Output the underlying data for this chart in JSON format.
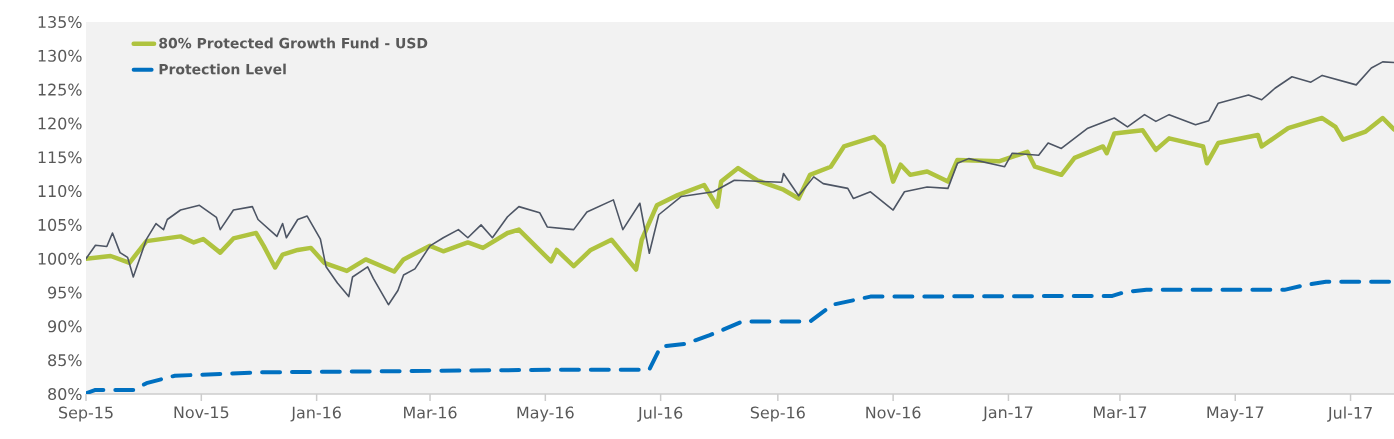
{
  "chart_data": {
    "type": "line",
    "xlim": [
      "2015-09-01",
      "2017-07-24"
    ],
    "xticks": [
      {
        "value": "2015-09-01",
        "label": "Sep-15"
      },
      {
        "value": "2015-11-01",
        "label": "Nov-15"
      },
      {
        "value": "2016-01-01",
        "label": "Jan-16"
      },
      {
        "value": "2016-03-01",
        "label": "Mar-16"
      },
      {
        "value": "2016-05-01",
        "label": "May-16"
      },
      {
        "value": "2016-07-01",
        "label": "Jul-16"
      },
      {
        "value": "2016-09-01",
        "label": "Sep-16"
      },
      {
        "value": "2016-11-01",
        "label": "Nov-16"
      },
      {
        "value": "2017-01-01",
        "label": "Jan-17"
      },
      {
        "value": "2017-03-01",
        "label": "Mar-17"
      },
      {
        "value": "2017-05-01",
        "label": "May-17"
      },
      {
        "value": "2017-07-01",
        "label": "Jul-17"
      }
    ],
    "ylim": [
      80,
      135
    ],
    "yticks": [
      {
        "value": 80,
        "label": "80%"
      },
      {
        "value": 85,
        "label": "85%"
      },
      {
        "value": 90,
        "label": "90%"
      },
      {
        "value": 95,
        "label": "95%"
      },
      {
        "value": 100,
        "label": "100%"
      },
      {
        "value": 105,
        "label": "105%"
      },
      {
        "value": 110,
        "label": "110%"
      },
      {
        "value": 115,
        "label": "115%"
      },
      {
        "value": 120,
        "label": "120%"
      },
      {
        "value": 125,
        "label": "125%"
      },
      {
        "value": 130,
        "label": "130%"
      },
      {
        "value": 135,
        "label": "135%"
      }
    ],
    "grid": false,
    "legend": "top left",
    "series": [
      {
        "name": "80% Protected Growth Fund - USD",
        "color": "#afc33f",
        "line_style": "solid",
        "x": [
          "2015-09-01",
          "2015-09-14",
          "2015-09-24",
          "2015-10-03",
          "2015-10-21",
          "2015-10-28",
          "2015-11-02",
          "2015-11-11",
          "2015-11-18",
          "2015-11-30",
          "2015-12-04",
          "2015-12-10",
          "2015-12-14",
          "2015-12-22",
          "2015-12-29",
          "2016-01-05",
          "2016-01-17",
          "2016-01-27",
          "2016-02-11",
          "2016-02-16",
          "2016-03-01",
          "2016-03-08",
          "2016-03-21",
          "2016-03-29",
          "2016-04-11",
          "2016-04-17",
          "2016-05-04",
          "2016-05-07",
          "2016-05-16",
          "2016-05-25",
          "2016-06-05",
          "2016-06-18",
          "2016-06-21",
          "2016-06-29",
          "2016-07-10",
          "2016-07-24",
          "2016-07-31",
          "2016-08-02",
          "2016-08-11",
          "2016-08-21",
          "2016-09-04",
          "2016-09-12",
          "2016-09-18",
          "2016-09-29",
          "2016-10-06",
          "2016-10-22",
          "2016-10-27",
          "2016-11-01",
          "2016-11-05",
          "2016-11-10",
          "2016-11-19",
          "2016-11-30",
          "2016-12-05",
          "2016-12-27",
          "2017-01-11",
          "2017-01-15",
          "2017-01-29",
          "2017-02-05",
          "2017-02-20",
          "2017-02-22",
          "2017-02-26",
          "2017-03-13",
          "2017-03-20",
          "2017-03-27",
          "2017-04-14",
          "2017-04-16",
          "2017-04-22",
          "2017-05-13",
          "2017-05-15",
          "2017-05-29",
          "2017-06-12",
          "2017-06-16",
          "2017-06-23",
          "2017-06-27",
          "2017-07-09",
          "2017-07-18",
          "2017-07-24"
        ],
        "values": [
          100.0,
          100.4,
          99.4,
          102.6,
          103.3,
          102.4,
          102.9,
          100.9,
          103.0,
          103.8,
          101.9,
          98.7,
          100.6,
          101.3,
          101.6,
          99.4,
          98.2,
          99.9,
          98.1,
          99.9,
          101.9,
          101.1,
          102.4,
          101.6,
          103.8,
          104.3,
          99.6,
          101.3,
          98.9,
          101.3,
          102.8,
          98.4,
          102.8,
          107.9,
          109.4,
          110.9,
          107.7,
          111.4,
          113.4,
          111.6,
          110.2,
          108.9,
          112.4,
          113.6,
          116.6,
          118.0,
          116.6,
          111.4,
          113.9,
          112.4,
          112.9,
          111.4,
          114.6,
          114.4,
          115.8,
          113.6,
          112.4,
          114.9,
          116.6,
          115.6,
          118.5,
          119.0,
          116.1,
          117.8,
          116.6,
          114.1,
          117.1,
          118.3,
          116.6,
          119.3,
          120.5,
          120.8,
          119.5,
          117.6,
          118.8,
          120.8,
          119.1
        ]
      },
      {
        "name": "Protection Level",
        "color": "#0070c0",
        "line_style": "dashed",
        "x": [
          "2015-09-01",
          "2015-09-06",
          "2015-09-26",
          "2015-10-03",
          "2015-10-18",
          "2015-12-03",
          "2016-04-04",
          "2016-05-08",
          "2016-06-25",
          "2016-07-01",
          "2016-07-14",
          "2016-07-27",
          "2016-08-03",
          "2016-08-13",
          "2016-09-18",
          "2016-09-30",
          "2016-10-20",
          "2017-02-25",
          "2017-03-04",
          "2017-03-15",
          "2017-05-27",
          "2017-06-07",
          "2017-06-18",
          "2017-07-24"
        ],
        "values": [
          80.1,
          80.6,
          80.6,
          81.6,
          82.7,
          83.2,
          83.5,
          83.6,
          83.6,
          87.0,
          87.4,
          88.7,
          89.5,
          90.7,
          90.7,
          93.2,
          94.4,
          94.5,
          95.1,
          95.4,
          95.4,
          96.1,
          96.6,
          96.6
        ]
      },
      {
        "color": "#4d5564",
        "line_style": "solid",
        "x": [
          "2015-09-01",
          "2015-09-06",
          "2015-09-12",
          "2015-09-15",
          "2015-09-19",
          "2015-09-23",
          "2015-09-26",
          "2015-10-03",
          "2015-10-08",
          "2015-10-12",
          "2015-10-14",
          "2015-10-21",
          "2015-10-31",
          "2015-11-09",
          "2015-11-11",
          "2015-11-18",
          "2015-11-28",
          "2015-12-01",
          "2015-12-11",
          "2015-12-14",
          "2015-12-16",
          "2015-12-22",
          "2015-12-27",
          "2016-01-03",
          "2016-01-06",
          "2016-01-12",
          "2016-01-18",
          "2016-01-20",
          "2016-01-28",
          "2016-01-31",
          "2016-02-08",
          "2016-02-13",
          "2016-02-16",
          "2016-02-22",
          "2016-03-01",
          "2016-03-08",
          "2016-03-16",
          "2016-03-21",
          "2016-03-28",
          "2016-04-03",
          "2016-04-11",
          "2016-04-17",
          "2016-04-28",
          "2016-05-02",
          "2016-05-16",
          "2016-05-23",
          "2016-06-06",
          "2016-06-11",
          "2016-06-20",
          "2016-06-25",
          "2016-06-30",
          "2016-07-12",
          "2016-07-29",
          "2016-08-09",
          "2016-09-03",
          "2016-09-04",
          "2016-09-12",
          "2016-09-20",
          "2016-09-25",
          "2016-10-08",
          "2016-10-11",
          "2016-10-20",
          "2016-11-01",
          "2016-11-07",
          "2016-11-19",
          "2016-11-30",
          "2016-12-05",
          "2016-12-11",
          "2016-12-30",
          "2017-01-03",
          "2017-01-17",
          "2017-01-22",
          "2017-01-29",
          "2017-02-12",
          "2017-02-26",
          "2017-03-05",
          "2017-03-14",
          "2017-03-20",
          "2017-03-27",
          "2017-04-10",
          "2017-04-17",
          "2017-04-22",
          "2017-05-08",
          "2017-05-15",
          "2017-05-22",
          "2017-05-31",
          "2017-06-10",
          "2017-06-16",
          "2017-07-04",
          "2017-07-12",
          "2017-07-18",
          "2017-07-24"
        ],
        "values": [
          100.0,
          102.0,
          101.8,
          103.8,
          100.9,
          100.2,
          97.3,
          102.9,
          105.2,
          104.3,
          105.8,
          107.2,
          107.9,
          106.1,
          104.3,
          107.2,
          107.7,
          105.8,
          103.3,
          105.2,
          103.1,
          105.8,
          106.3,
          102.9,
          98.8,
          96.4,
          94.4,
          97.3,
          98.8,
          97.1,
          93.2,
          95.3,
          97.6,
          98.5,
          101.9,
          103.1,
          104.3,
          103.1,
          105.0,
          103.1,
          106.2,
          107.7,
          106.8,
          104.7,
          104.3,
          106.9,
          108.7,
          104.3,
          108.2,
          100.8,
          106.5,
          109.2,
          109.9,
          111.6,
          111.3,
          112.6,
          109.3,
          112.1,
          111.1,
          110.4,
          108.9,
          109.9,
          107.2,
          109.9,
          110.6,
          110.4,
          114.1,
          114.8,
          113.6,
          115.6,
          115.3,
          117.1,
          116.3,
          119.3,
          120.8,
          119.5,
          121.3,
          120.3,
          121.3,
          119.8,
          120.4,
          123.0,
          124.2,
          123.5,
          125.2,
          126.9,
          126.1,
          127.1,
          125.7,
          128.2,
          129.1,
          129.0
        ]
      }
    ]
  }
}
